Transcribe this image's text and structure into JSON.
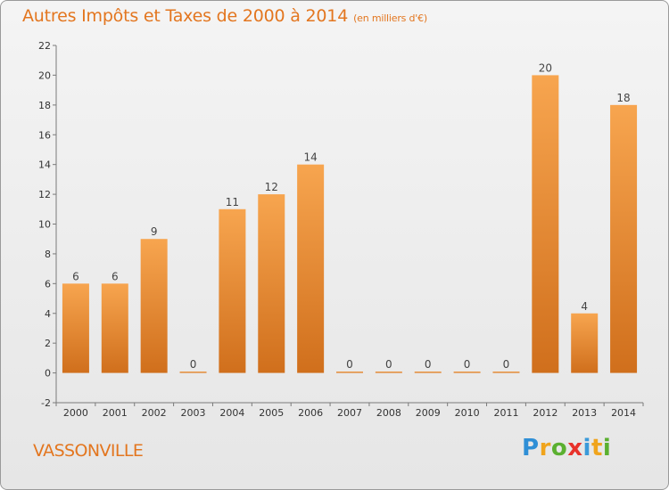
{
  "title": "Autres Impôts et Taxes de 2000 à 2014",
  "unit": "(en milliers d'€)",
  "commune": "VASSONVILLE",
  "logo": {
    "letters": [
      "P",
      "r",
      "o",
      "x",
      "i",
      "t",
      "i"
    ],
    "colors": [
      "#2f8fd6",
      "#f0a41c",
      "#5bb030",
      "#e8322b",
      "#3b9ad9",
      "#f0a41c",
      "#5bb030"
    ]
  },
  "colors": {
    "bar_light": "#f7a54f",
    "bar_dark": "#d06f1c",
    "title": "#e3761f"
  },
  "chart_data": {
    "type": "bar",
    "title": "Autres Impôts et Taxes de 2000 à 2014",
    "xlabel": "",
    "ylabel": "",
    "categories": [
      "2000",
      "2001",
      "2002",
      "2003",
      "2004",
      "2005",
      "2006",
      "2007",
      "2008",
      "2009",
      "2010",
      "2011",
      "2012",
      "2013",
      "2014"
    ],
    "values": [
      6,
      6,
      9,
      0,
      11,
      12,
      14,
      0,
      0,
      0,
      0,
      0,
      20,
      4,
      18
    ],
    "ylim": [
      -2,
      22
    ],
    "yticks": [
      -2,
      0,
      2,
      4,
      6,
      8,
      10,
      12,
      14,
      16,
      18,
      20,
      22
    ],
    "grid": false
  }
}
